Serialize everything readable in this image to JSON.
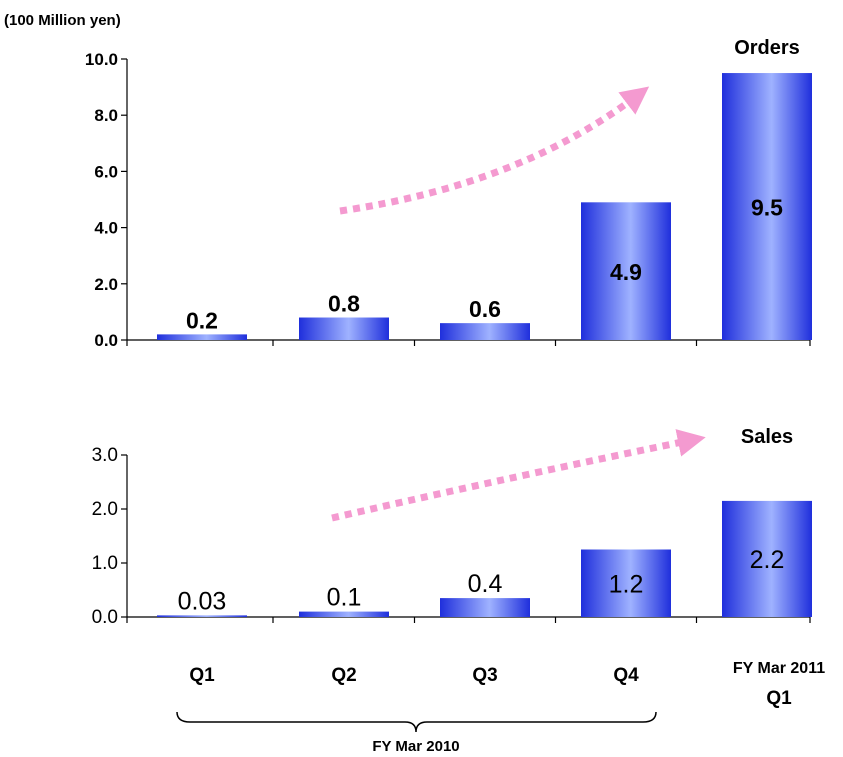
{
  "unit_label": "(100 Million yen)",
  "group_label": "FY Mar 2010",
  "last_category": {
    "line1": "FY Mar 2011",
    "line2": "Q1"
  },
  "colors": {
    "bar_dark": "#1f2fdc",
    "bar_light": "#9fb2ff",
    "arrow": "#f49ad0",
    "axis": "#000000"
  },
  "chart_data": [
    {
      "type": "bar",
      "title": "Orders",
      "categories": [
        "Q1",
        "Q2",
        "Q3",
        "Q4",
        "FY Mar 2011 Q1"
      ],
      "values": [
        0.2,
        0.8,
        0.6,
        4.9,
        9.5
      ],
      "data_labels": [
        "0.2",
        "0.8",
        "0.6",
        "4.9",
        "9.5"
      ],
      "yticks": [
        "0.0",
        "2.0",
        "4.0",
        "6.0",
        "8.0",
        "10.0"
      ],
      "ylim": [
        0,
        10
      ],
      "label_position": [
        "above",
        "above",
        "above",
        "inside",
        "inside"
      ]
    },
    {
      "type": "bar",
      "title": "Sales",
      "categories": [
        "Q1",
        "Q2",
        "Q3",
        "Q4",
        "FY Mar 2011 Q1"
      ],
      "values": [
        0.03,
        0.1,
        0.35,
        1.25,
        2.15
      ],
      "data_labels": [
        "0.03",
        "0.1",
        "0.4",
        "1.2",
        "2.2"
      ],
      "yticks": [
        "0.0",
        "1.0",
        "2.0",
        "3.0"
      ],
      "ylim": [
        0,
        3
      ],
      "label_position": [
        "above",
        "above",
        "above",
        "inside",
        "inside"
      ]
    }
  ]
}
